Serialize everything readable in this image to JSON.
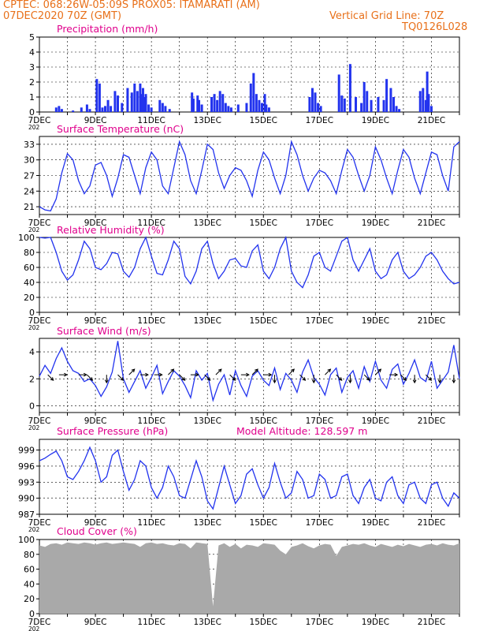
{
  "header": {
    "line1": "CPTEC:    068:26W-05:09S    PROX05: ITAMARATI (AM)",
    "line2_left": "07DEC2020 70Z (GMT)",
    "line2_right": "Vertical Grid Line: 70Z",
    "line3_right": "TQ0126L028"
  },
  "colors": {
    "header": "#e8701a",
    "title": "#e0008c",
    "series": "#2233ee",
    "cloud": "#a9a9a9",
    "wind_arrow": "#000000"
  },
  "x_axis": {
    "day_range": [
      7,
      22
    ],
    "tick_labels": [
      "7DEC",
      "9DEC",
      "11DEC",
      "13DEC",
      "15DEC",
      "17DEC",
      "19DEC",
      "21DEC"
    ],
    "tick_days": [
      7,
      9,
      11,
      13,
      15,
      17,
      19,
      21
    ],
    "minor_days": [
      8,
      10,
      12,
      14,
      16,
      18,
      20
    ],
    "year_stub": "202"
  },
  "panels": {
    "precip": {
      "title": "Precipitation  (mm/h)"
    },
    "temp": {
      "title": "Surface Temperature (nC)"
    },
    "rh": {
      "title": "Relative Humidity (%)"
    },
    "wind": {
      "title": "Surface Wind (m/s)"
    },
    "pressure": {
      "title": "Surface Pressure (hPa)",
      "extra": "Model Altitude: 128.597  m"
    },
    "cloud": {
      "title": "Cloud Cover (%)"
    }
  },
  "chart_data": [
    {
      "type": "bar",
      "id": "precip",
      "title": "Precipitation  (mm/h)",
      "ylim": [
        0,
        5
      ],
      "yticks": [
        0,
        1,
        2,
        3,
        4,
        5
      ],
      "grid": "dashed",
      "x": [
        7.6,
        7.7,
        7.8,
        8.2,
        8.5,
        8.7,
        8.8,
        9.05,
        9.15,
        9.25,
        9.35,
        9.45,
        9.55,
        9.7,
        9.8,
        9.95,
        10.15,
        10.3,
        10.4,
        10.5,
        10.6,
        10.65,
        10.7,
        10.75,
        10.8,
        10.9,
        11.0,
        11.3,
        11.4,
        11.5,
        11.65,
        12.45,
        12.5,
        12.65,
        12.7,
        12.8,
        13.15,
        13.25,
        13.35,
        13.45,
        13.55,
        13.65,
        13.75,
        13.85,
        14.1,
        14.4,
        14.55,
        14.65,
        14.75,
        14.85,
        14.95,
        15.05,
        15.1,
        15.2,
        16.65,
        16.75,
        16.85,
        16.95,
        17.05,
        17.7,
        17.8,
        17.9,
        18.1,
        18.3,
        18.5,
        18.6,
        18.7,
        18.85,
        19.1,
        19.3,
        19.4,
        19.55,
        19.65,
        19.75,
        19.85,
        20.6,
        20.7,
        20.8,
        20.85,
        20.9,
        21.0
      ],
      "values": [
        0.3,
        0.4,
        0.2,
        0.1,
        0.3,
        0.5,
        0.2,
        2.2,
        1.9,
        0.3,
        0.4,
        0.8,
        0.4,
        1.4,
        1.1,
        0.6,
        1.6,
        1.3,
        1.9,
        1.4,
        1.9,
        1.2,
        1.6,
        1.0,
        1.2,
        0.5,
        0.3,
        0.8,
        0.6,
        0.4,
        0.2,
        1.3,
        0.9,
        1.1,
        0.8,
        0.5,
        1.0,
        1.2,
        0.8,
        1.4,
        1.2,
        0.6,
        0.4,
        0.3,
        0.5,
        0.6,
        1.9,
        2.6,
        1.2,
        0.8,
        0.6,
        1.2,
        0.5,
        0.3,
        1.0,
        1.6,
        1.3,
        0.6,
        0.4,
        2.5,
        1.1,
        0.9,
        3.2,
        1.0,
        0.6,
        2.0,
        1.4,
        0.8,
        1.0,
        0.8,
        2.2,
        1.6,
        1.0,
        0.4,
        0.2,
        1.4,
        1.6,
        0.8,
        2.7,
        1.2,
        0.4
      ]
    },
    {
      "type": "line",
      "id": "temp",
      "title": "Surface Temperature (nC)",
      "ylim": [
        19.5,
        34.5
      ],
      "yticks": [
        21,
        24,
        27,
        30,
        33
      ],
      "grid": "dashed",
      "x": [
        7.0,
        7.2,
        7.4,
        7.6,
        7.8,
        8.0,
        8.2,
        8.4,
        8.6,
        8.8,
        9.0,
        9.2,
        9.4,
        9.6,
        9.8,
        10.0,
        10.2,
        10.4,
        10.6,
        10.8,
        11.0,
        11.2,
        11.4,
        11.6,
        11.8,
        12.0,
        12.2,
        12.4,
        12.6,
        12.8,
        13.0,
        13.2,
        13.4,
        13.6,
        13.8,
        14.0,
        14.2,
        14.4,
        14.6,
        14.8,
        15.0,
        15.2,
        15.4,
        15.6,
        15.8,
        16.0,
        16.2,
        16.4,
        16.6,
        16.8,
        17.0,
        17.2,
        17.4,
        17.6,
        17.8,
        18.0,
        18.2,
        18.4,
        18.6,
        18.8,
        19.0,
        19.2,
        19.4,
        19.6,
        19.8,
        20.0,
        20.2,
        20.4,
        20.6,
        20.8,
        21.0,
        21.2,
        21.4,
        21.6,
        21.8,
        22.0
      ],
      "values": [
        21.0,
        20.4,
        20.2,
        22.5,
        27.5,
        31.2,
        30.0,
        26.0,
        23.5,
        25.0,
        29.0,
        29.5,
        27.0,
        23.0,
        26.5,
        31.0,
        30.5,
        27.0,
        23.5,
        28.5,
        31.5,
        30.0,
        25.0,
        23.5,
        28.5,
        33.5,
        31.0,
        26.0,
        23.5,
        28.0,
        33.0,
        32.0,
        27.5,
        24.5,
        27.0,
        28.5,
        28.0,
        26.0,
        23.0,
        28.0,
        31.5,
        30.0,
        26.5,
        23.5,
        27.0,
        33.5,
        31.0,
        27.0,
        24.0,
        26.5,
        28.0,
        27.5,
        26.0,
        23.5,
        28.0,
        32.0,
        30.5,
        27.0,
        24.0,
        27.0,
        32.5,
        30.0,
        26.5,
        23.5,
        28.0,
        32.0,
        30.5,
        26.5,
        23.5,
        27.5,
        31.5,
        31.0,
        27.0,
        24.0,
        32.5,
        33.5
      ]
    },
    {
      "type": "line",
      "id": "rh",
      "title": "Relative Humidity (%)",
      "ylim": [
        0,
        100
      ],
      "yticks": [
        0,
        20,
        40,
        60,
        80,
        100
      ],
      "grid": "dashed",
      "x": [
        7.0,
        7.2,
        7.4,
        7.6,
        7.8,
        8.0,
        8.2,
        8.4,
        8.6,
        8.8,
        9.0,
        9.2,
        9.4,
        9.6,
        9.8,
        10.0,
        10.2,
        10.4,
        10.6,
        10.8,
        11.0,
        11.2,
        11.4,
        11.6,
        11.8,
        12.0,
        12.2,
        12.4,
        12.6,
        12.8,
        13.0,
        13.2,
        13.4,
        13.6,
        13.8,
        14.0,
        14.2,
        14.4,
        14.6,
        14.8,
        15.0,
        15.2,
        15.4,
        15.6,
        15.8,
        16.0,
        16.2,
        16.4,
        16.6,
        16.8,
        17.0,
        17.2,
        17.4,
        17.6,
        17.8,
        18.0,
        18.2,
        18.4,
        18.6,
        18.8,
        19.0,
        19.2,
        19.4,
        19.6,
        19.8,
        20.0,
        20.2,
        20.4,
        20.6,
        20.8,
        21.0,
        21.2,
        21.4,
        21.6,
        21.8,
        22.0
      ],
      "values": [
        100,
        99,
        100,
        80,
        55,
        43,
        50,
        70,
        95,
        85,
        60,
        57,
        65,
        80,
        78,
        55,
        47,
        60,
        85,
        100,
        75,
        52,
        50,
        70,
        95,
        85,
        48,
        38,
        55,
        85,
        95,
        65,
        45,
        55,
        70,
        72,
        62,
        60,
        82,
        90,
        55,
        45,
        60,
        85,
        100,
        55,
        40,
        33,
        50,
        75,
        80,
        60,
        55,
        75,
        95,
        100,
        70,
        55,
        70,
        85,
        55,
        45,
        50,
        70,
        80,
        55,
        45,
        50,
        60,
        75,
        80,
        70,
        55,
        45,
        38,
        40
      ]
    },
    {
      "type": "line",
      "id": "wind",
      "title": "Surface Wind (m/s)",
      "ylim": [
        -0.5,
        5.0
      ],
      "yticks": [
        0,
        2,
        4
      ],
      "grid": "dashed",
      "x": [
        7.0,
        7.2,
        7.4,
        7.6,
        7.8,
        8.0,
        8.2,
        8.4,
        8.6,
        8.8,
        9.0,
        9.2,
        9.4,
        9.6,
        9.8,
        10.0,
        10.2,
        10.4,
        10.6,
        10.8,
        11.0,
        11.2,
        11.4,
        11.6,
        11.8,
        12.0,
        12.2,
        12.4,
        12.6,
        12.8,
        13.0,
        13.2,
        13.4,
        13.6,
        13.8,
        14.0,
        14.2,
        14.4,
        14.6,
        14.8,
        15.0,
        15.2,
        15.4,
        15.6,
        15.8,
        16.0,
        16.2,
        16.4,
        16.6,
        16.8,
        17.0,
        17.2,
        17.4,
        17.6,
        17.8,
        18.0,
        18.2,
        18.4,
        18.6,
        18.8,
        19.0,
        19.2,
        19.4,
        19.6,
        19.8,
        20.0,
        20.2,
        20.4,
        20.6,
        20.8,
        21.0,
        21.2,
        21.4,
        21.6,
        21.8,
        22.0
      ],
      "values": [
        2.2,
        3.0,
        2.4,
        3.5,
        4.3,
        3.3,
        2.6,
        2.4,
        1.8,
        2.0,
        1.5,
        0.7,
        1.4,
        2.5,
        4.8,
        2.0,
        1.0,
        1.8,
        2.6,
        1.3,
        2.1,
        3.0,
        0.9,
        1.8,
        2.6,
        2.2,
        1.5,
        0.6,
        2.6,
        1.9,
        2.4,
        0.4,
        1.6,
        2.3,
        0.8,
        2.6,
        1.5,
        0.7,
        2.2,
        2.6,
        1.9,
        1.5,
        2.8,
        1.2,
        2.4,
        1.9,
        1.0,
        2.5,
        3.4,
        2.1,
        1.6,
        0.8,
        2.3,
        2.8,
        1.0,
        2.1,
        2.6,
        1.3,
        2.9,
        1.8,
        3.3,
        1.9,
        1.3,
        2.7,
        3.1,
        1.6,
        2.4,
        3.4,
        2.1,
        1.8,
        3.3,
        1.3,
        1.9,
        2.5,
        4.5,
        2.0
      ],
      "arrows": [
        {
          "day": 7.3,
          "dir": "SE"
        },
        {
          "day": 7.7,
          "dir": "E"
        },
        {
          "day": 8.4,
          "dir": "E"
        },
        {
          "day": 8.7,
          "dir": "SE"
        },
        {
          "day": 9.4,
          "dir": "S"
        },
        {
          "day": 9.8,
          "dir": "SE"
        },
        {
          "day": 10.2,
          "dir": "NE"
        },
        {
          "day": 10.6,
          "dir": "E"
        },
        {
          "day": 11.1,
          "dir": "E"
        },
        {
          "day": 11.6,
          "dir": "NE"
        },
        {
          "day": 12.0,
          "dir": "SE"
        },
        {
          "day": 12.4,
          "dir": "E"
        },
        {
          "day": 12.9,
          "dir": "SE"
        },
        {
          "day": 13.3,
          "dir": "NE"
        },
        {
          "day": 13.8,
          "dir": "SE"
        },
        {
          "day": 14.2,
          "dir": "E"
        },
        {
          "day": 14.6,
          "dir": "NE"
        },
        {
          "day": 15.0,
          "dir": "E"
        },
        {
          "day": 15.4,
          "dir": "S"
        },
        {
          "day": 15.9,
          "dir": "NE"
        },
        {
          "day": 16.3,
          "dir": "SE"
        },
        {
          "day": 16.8,
          "dir": "S"
        },
        {
          "day": 17.2,
          "dir": "NE"
        },
        {
          "day": 17.6,
          "dir": "SE"
        },
        {
          "day": 18.1,
          "dir": "S"
        },
        {
          "day": 18.6,
          "dir": "SE"
        },
        {
          "day": 19.0,
          "dir": "NE"
        },
        {
          "day": 19.5,
          "dir": "E"
        },
        {
          "day": 19.9,
          "dir": "SE"
        },
        {
          "day": 20.4,
          "dir": "S"
        },
        {
          "day": 20.8,
          "dir": "SE"
        },
        {
          "day": 21.3,
          "dir": "S"
        },
        {
          "day": 21.8,
          "dir": "S"
        }
      ]
    },
    {
      "type": "line",
      "id": "pressure",
      "title": "Surface Pressure (hPa)",
      "ylim": [
        987,
        1001
      ],
      "yticks": [
        987,
        990,
        993,
        996,
        999
      ],
      "grid": "dashed",
      "x": [
        7.0,
        7.2,
        7.4,
        7.6,
        7.8,
        8.0,
        8.2,
        8.4,
        8.6,
        8.8,
        9.0,
        9.2,
        9.4,
        9.6,
        9.8,
        10.0,
        10.2,
        10.4,
        10.6,
        10.8,
        11.0,
        11.2,
        11.4,
        11.6,
        11.8,
        12.0,
        12.2,
        12.4,
        12.6,
        12.8,
        13.0,
        13.2,
        13.4,
        13.6,
        13.8,
        14.0,
        14.2,
        14.4,
        14.6,
        14.8,
        15.0,
        15.2,
        15.4,
        15.6,
        15.8,
        16.0,
        16.2,
        16.4,
        16.6,
        16.8,
        17.0,
        17.2,
        17.4,
        17.6,
        17.8,
        18.0,
        18.2,
        18.4,
        18.6,
        18.8,
        19.0,
        19.2,
        19.4,
        19.6,
        19.8,
        20.0,
        20.2,
        20.4,
        20.6,
        20.8,
        21.0,
        21.2,
        21.4,
        21.6,
        21.8,
        22.0
      ],
      "values": [
        997.0,
        997.5,
        998.2,
        998.8,
        997.0,
        994.0,
        993.5,
        995.0,
        997.0,
        999.5,
        997.0,
        993.0,
        994.0,
        998.0,
        999.0,
        995.0,
        991.5,
        993.5,
        997.0,
        996.0,
        992.0,
        990.0,
        992.0,
        996.0,
        994.0,
        990.5,
        990.0,
        993.5,
        997.0,
        994.0,
        989.5,
        988.0,
        992.0,
        996.0,
        992.5,
        989.0,
        990.5,
        994.5,
        995.5,
        992.5,
        990.0,
        992.0,
        996.5,
        993.0,
        990.0,
        991.0,
        995.0,
        993.5,
        990.0,
        990.5,
        994.5,
        993.5,
        990.0,
        990.5,
        994.0,
        994.5,
        990.5,
        989.0,
        992.0,
        993.5,
        990.0,
        989.5,
        993.0,
        994.0,
        990.5,
        989.0,
        992.5,
        993.0,
        990.0,
        989.0,
        992.5,
        993.0,
        990.0,
        988.5,
        991.0,
        990.0
      ]
    },
    {
      "type": "area",
      "id": "cloud",
      "title": "Cloud Cover (%)",
      "ylim": [
        0,
        100
      ],
      "yticks": [
        0,
        20,
        40,
        60,
        80,
        100
      ],
      "grid": "dashed",
      "x": [
        7.0,
        7.2,
        7.4,
        7.6,
        7.8,
        8.0,
        8.2,
        8.4,
        8.6,
        8.8,
        9.0,
        9.2,
        9.4,
        9.6,
        9.8,
        10.0,
        10.2,
        10.4,
        10.6,
        10.8,
        11.0,
        11.2,
        11.4,
        11.6,
        11.8,
        12.0,
        12.2,
        12.4,
        12.6,
        12.8,
        13.0,
        13.2,
        13.4,
        13.6,
        13.8,
        14.0,
        14.2,
        14.4,
        14.6,
        14.8,
        15.0,
        15.2,
        15.4,
        15.6,
        15.8,
        16.0,
        16.2,
        16.4,
        16.6,
        16.8,
        17.0,
        17.2,
        17.4,
        17.6,
        17.8,
        18.0,
        18.2,
        18.4,
        18.6,
        18.8,
        19.0,
        19.2,
        19.4,
        19.6,
        19.8,
        20.0,
        20.2,
        20.4,
        20.6,
        20.8,
        21.0,
        21.2,
        21.4,
        21.6,
        21.8,
        22.0
      ],
      "values": [
        92,
        90,
        94,
        95,
        93,
        96,
        95,
        94,
        96,
        95,
        93,
        95,
        96,
        94,
        95,
        96,
        95,
        94,
        90,
        95,
        96,
        94,
        95,
        93,
        92,
        95,
        94,
        88,
        96,
        95,
        94,
        10,
        92,
        95,
        90,
        94,
        88,
        93,
        92,
        90,
        95,
        94,
        93,
        85,
        80,
        90,
        92,
        95,
        91,
        88,
        92,
        94,
        93,
        78,
        90,
        92,
        94,
        93,
        95,
        92,
        90,
        94,
        92,
        90,
        93,
        91,
        94,
        92,
        90,
        93,
        94,
        92,
        95,
        93,
        92,
        95
      ]
    }
  ]
}
